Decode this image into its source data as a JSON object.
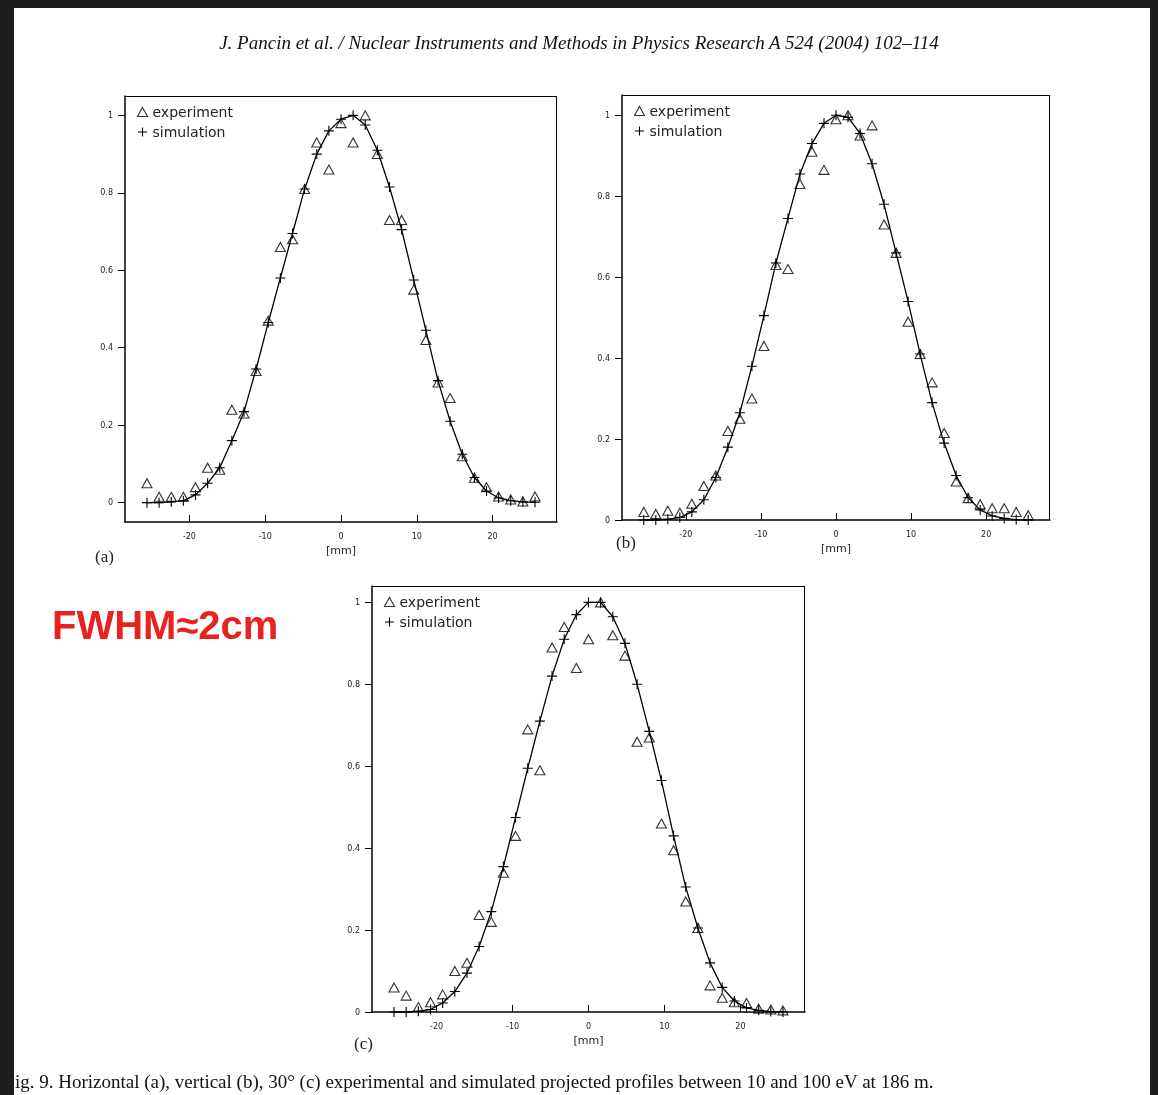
{
  "chart_data": [
    {
      "type": "scatter",
      "title": "(a)",
      "xlabel": "[mm]",
      "annotations": [
        "J. Pancin et al. / Nuclear Instruments and Methods in Physics Research A 524 (2004) 102–114"
      ],
      "x": [
        -25.6,
        -24,
        -22.4,
        -20.8,
        -19.2,
        -17.6,
        -16,
        -14.4,
        -12.8,
        -11.2,
        -9.6,
        -8,
        -6.4,
        -4.8,
        -3.2,
        -1.6,
        0,
        1.6,
        3.2,
        4.8,
        6.4,
        8,
        9.6,
        11.2,
        12.8,
        14.4,
        16,
        17.6,
        19.2,
        20.8,
        22.4,
        24,
        25.6
      ],
      "xlim": [
        -28.5,
        28.5
      ],
      "xticks": [
        -20,
        -10,
        0,
        10,
        20
      ],
      "ylim": [
        -0.05,
        1.05
      ],
      "yticks": [
        0,
        0.2,
        0.4,
        0.6,
        0.8,
        1
      ],
      "legend": "top left",
      "line_style": "solid",
      "series": [
        {
          "name": "experiment",
          "type": "scatter",
          "marker": "triangle",
          "color": "#000000",
          "values": [
            0.05,
            0.015,
            0.015,
            0.015,
            0.04,
            0.09,
            0.085,
            0.24,
            0.23,
            0.34,
            0.47,
            0.66,
            0.68,
            0.81,
            0.93,
            0.86,
            0.98,
            0.93,
            1.0,
            0.9,
            0.73,
            0.73,
            0.55,
            0.42,
            0.31,
            0.27,
            0.12,
            0.064,
            0.04,
            0.016,
            0.008,
            0.003,
            0.016
          ]
        },
        {
          "name": "simulation",
          "type": "line",
          "marker": "cross",
          "color": "#000000",
          "values": [
            0,
            0,
            0.002,
            0.005,
            0.02,
            0.05,
            0.09,
            0.16,
            0.235,
            0.345,
            0.465,
            0.58,
            0.695,
            0.81,
            0.9,
            0.96,
            0.99,
            1.0,
            0.975,
            0.91,
            0.815,
            0.705,
            0.575,
            0.445,
            0.315,
            0.21,
            0.125,
            0.065,
            0.03,
            0.012,
            0.005,
            0.002,
            0.001
          ]
        }
      ]
    },
    {
      "type": "scatter",
      "title": "(b)",
      "xlabel": "[mm]",
      "x": [
        -25.6,
        -24,
        -22.4,
        -20.8,
        -19.2,
        -17.6,
        -16,
        -14.4,
        -12.8,
        -11.2,
        -9.6,
        -8,
        -6.4,
        -4.8,
        -3.2,
        -1.6,
        0,
        1.6,
        3.2,
        4.8,
        6.4,
        8,
        9.6,
        11.2,
        12.8,
        14.4,
        16,
        17.6,
        19.2,
        20.8,
        22.4,
        24,
        25.6
      ],
      "xlim": [
        -28.5,
        28.5
      ],
      "xticks": [
        -20,
        -10,
        0,
        10,
        20
      ],
      "ylim": [
        0,
        1.05
      ],
      "yticks": [
        0,
        0.2,
        0.4,
        0.6,
        0.8,
        1
      ],
      "legend": "top left",
      "line_style": "solid",
      "series": [
        {
          "name": "experiment",
          "type": "scatter",
          "marker": "triangle",
          "color": "#000000",
          "values": [
            0.02,
            0.015,
            0.023,
            0.018,
            0.04,
            0.084,
            0.11,
            0.22,
            0.25,
            0.3,
            0.43,
            0.63,
            0.62,
            0.83,
            0.91,
            0.865,
            0.99,
            1.0,
            0.95,
            0.975,
            0.73,
            0.66,
            0.49,
            0.41,
            0.34,
            0.215,
            0.095,
            0.054,
            0.039,
            0.029,
            0.029,
            0.02,
            0.012
          ]
        },
        {
          "name": "simulation",
          "type": "line",
          "marker": "cross",
          "color": "#000000",
          "values": [
            0,
            0,
            0.002,
            0.006,
            0.02,
            0.05,
            0.105,
            0.18,
            0.265,
            0.38,
            0.505,
            0.635,
            0.745,
            0.855,
            0.93,
            0.98,
            1.0,
            0.995,
            0.955,
            0.88,
            0.78,
            0.66,
            0.54,
            0.41,
            0.29,
            0.19,
            0.11,
            0.055,
            0.025,
            0.01,
            0.004,
            0.001,
            0
          ]
        }
      ]
    },
    {
      "type": "scatter",
      "title": "(c)",
      "xlabel": "[mm]",
      "annotations": [
        "FWHM≈2cm",
        "ig. 9. Horizontal (a), vertical (b), 30° (c) experimental and simulated projected profiles between 10 and 100 eV at 186 m."
      ],
      "x": [
        -25.6,
        -24,
        -22.4,
        -20.8,
        -19.2,
        -17.6,
        -16,
        -14.4,
        -12.8,
        -11.2,
        -9.6,
        -8,
        -6.4,
        -4.8,
        -3.2,
        -1.6,
        0,
        1.6,
        3.2,
        4.8,
        6.4,
        8,
        9.6,
        11.2,
        12.8,
        14.4,
        16,
        17.6,
        19.2,
        20.8,
        22.4,
        24,
        25.6
      ],
      "xlim": [
        -28.5,
        28.5
      ],
      "xticks": [
        -20,
        -10,
        0,
        10,
        20
      ],
      "ylim": [
        0,
        1.04
      ],
      "yticks": [
        0,
        0.2,
        0.4,
        0.6,
        0.8,
        1
      ],
      "legend": "top left",
      "line_style": "solid",
      "series": [
        {
          "name": "experiment",
          "type": "scatter",
          "marker": "triangle",
          "color": "#000000",
          "values": [
            0.06,
            0.04,
            0.012,
            0.024,
            0.043,
            0.1,
            0.12,
            0.237,
            0.22,
            0.34,
            0.43,
            0.69,
            0.59,
            0.89,
            0.94,
            0.84,
            0.91,
            1.0,
            0.92,
            0.87,
            0.66,
            0.67,
            0.46,
            0.395,
            0.27,
            0.205,
            0.065,
            0.035,
            0.024,
            0.022,
            0.008,
            0.006,
            0.004
          ]
        },
        {
          "name": "simulation",
          "type": "line",
          "marker": "cross",
          "color": "#000000",
          "values": [
            0,
            0,
            0.002,
            0.006,
            0.022,
            0.05,
            0.095,
            0.16,
            0.245,
            0.355,
            0.475,
            0.595,
            0.71,
            0.82,
            0.91,
            0.97,
            1.0,
            1.0,
            0.965,
            0.9,
            0.8,
            0.685,
            0.565,
            0.43,
            0.305,
            0.205,
            0.12,
            0.06,
            0.027,
            0.01,
            0.004,
            0.001,
            0
          ]
        }
      ]
    }
  ]
}
